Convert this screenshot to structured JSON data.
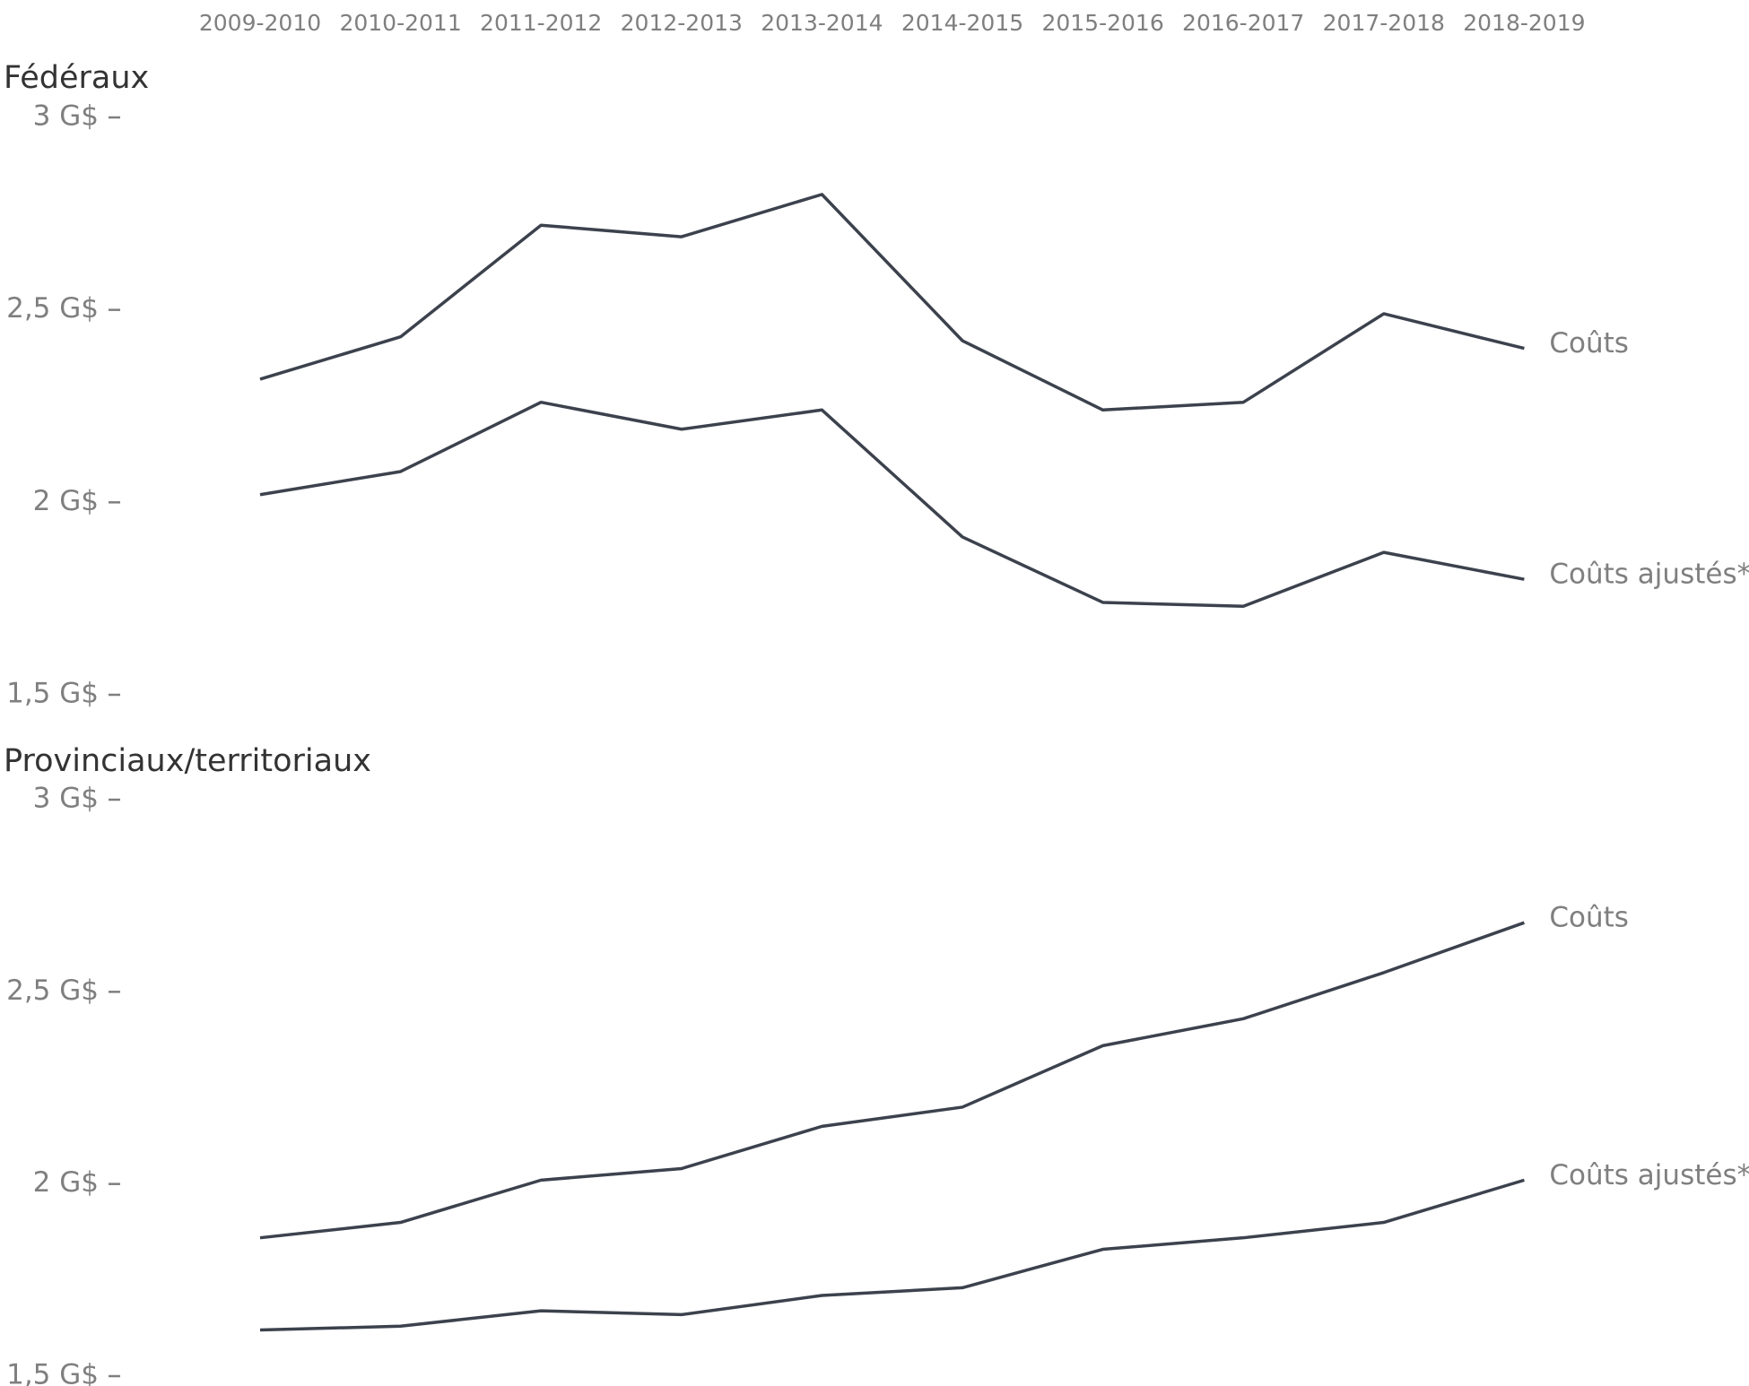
{
  "chart_data": [
    {
      "type": "line",
      "title": "Fédéraux",
      "categories": [
        "2009-2010",
        "2010-2011",
        "2011-2012",
        "2012-2013",
        "2013-2014",
        "2014-2015",
        "2015-2016",
        "2016-2017",
        "2017-2018",
        "2018-2019"
      ],
      "ylim": [
        1.5,
        3
      ],
      "yticks": [
        {
          "value": 1.5,
          "label": "1,5 G$"
        },
        {
          "value": 2,
          "label": "2 G$"
        },
        {
          "value": 2.5,
          "label": "2,5 G$"
        },
        {
          "value": 3,
          "label": "3 G$"
        }
      ],
      "series": [
        {
          "name": "Coûts",
          "color": "#3c424d",
          "values": [
            2.32,
            2.43,
            2.72,
            2.69,
            2.8,
            2.42,
            2.24,
            2.26,
            2.49,
            2.4
          ]
        },
        {
          "name": "Coûts ajustés*",
          "color": "#3c424d",
          "values": [
            2.02,
            2.08,
            2.26,
            2.19,
            2.24,
            1.91,
            1.74,
            1.73,
            1.87,
            1.8
          ]
        }
      ]
    },
    {
      "type": "line",
      "title": "Provinciaux/territoriaux",
      "ylim": [
        1.5,
        3
      ],
      "yticks": [
        {
          "value": 1.5,
          "label": "1,5 G$"
        },
        {
          "value": 2,
          "label": "2 G$"
        },
        {
          "value": 2.5,
          "label": "2,5 G$"
        },
        {
          "value": 3,
          "label": "3 G$"
        }
      ],
      "series": [
        {
          "name": "Coûts",
          "color": "#3c424d",
          "values": [
            1.86,
            1.9,
            2.01,
            2.04,
            2.15,
            2.2,
            2.36,
            2.43,
            2.55,
            2.68
          ]
        },
        {
          "name": "Coûts ajustés*",
          "color": "#3c424d",
          "values": [
            1.62,
            1.63,
            1.67,
            1.66,
            1.71,
            1.73,
            1.83,
            1.86,
            1.9,
            2.01
          ]
        }
      ]
    }
  ]
}
